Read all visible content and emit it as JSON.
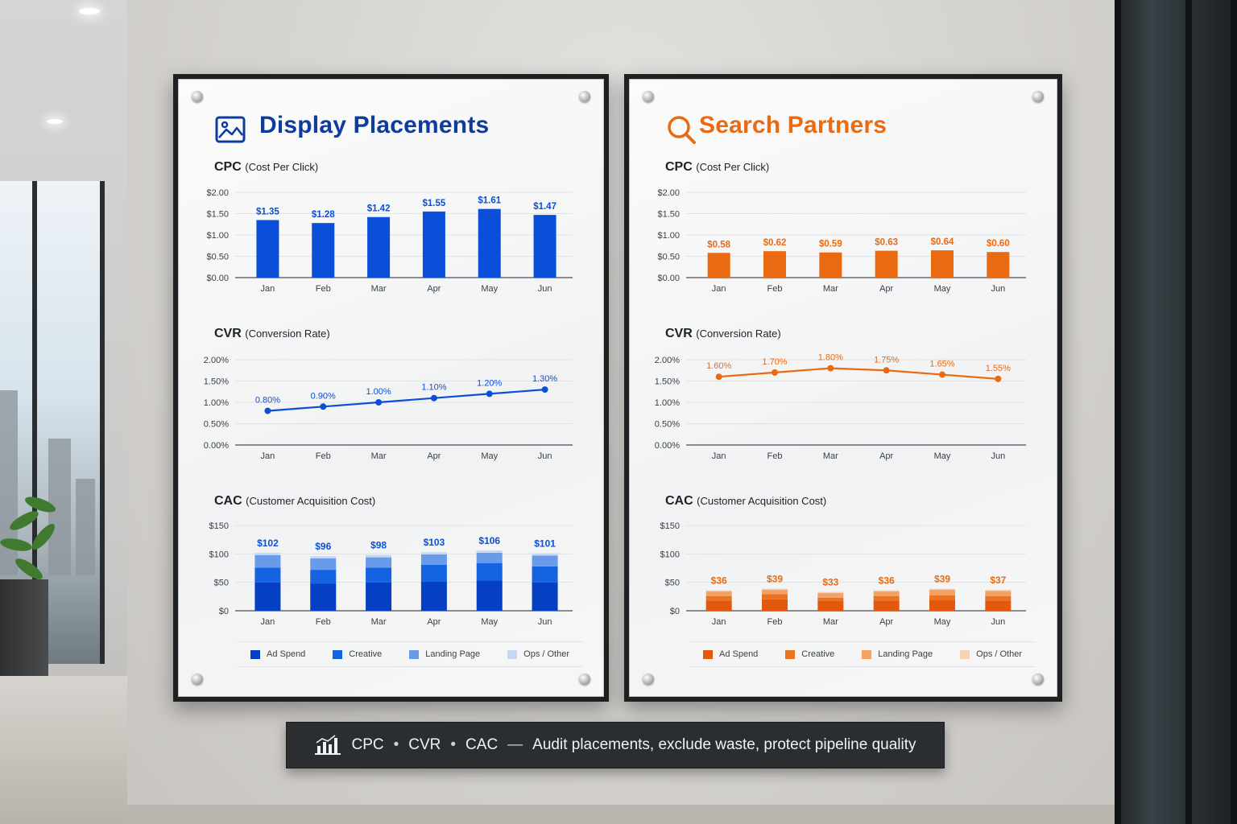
{
  "colors": {
    "display_primary": "#0b4fd8",
    "display_title": "#0f3b9c",
    "search_primary": "#ea6a12",
    "display_stack": [
      "#0640c2",
      "#1463e0",
      "#6a9bea",
      "#c6d8f6"
    ],
    "search_stack": [
      "#e2580d",
      "#ec7221",
      "#f3a263",
      "#f9d2b4"
    ]
  },
  "icons": {
    "display": "image-icon",
    "search": "search-icon",
    "plaque": "bar-chart-icon"
  },
  "plaque": {
    "metric1": "CPC",
    "metric2": "CVR",
    "metric3": "CAC",
    "separator_dot": "•",
    "separator_dash": "—",
    "message": "Audit placements, exclude waste, protect pipeline quality"
  },
  "panels": [
    {
      "title": "Display Placements",
      "legend": [
        "Ad Spend",
        "Creative",
        "Landing Page",
        "Ops / Other"
      ]
    },
    {
      "title": "Search Partners",
      "legend": [
        "Ad Spend",
        "Creative",
        "Landing Page",
        "Ops / Other"
      ]
    }
  ],
  "chart_data": [
    {
      "id": "display-cpc",
      "type": "bar",
      "title": "CPC",
      "subtitle": "(Cost Per Click)",
      "categories": [
        "Jan",
        "Feb",
        "Mar",
        "Apr",
        "May",
        "Jun"
      ],
      "values": [
        1.35,
        1.28,
        1.42,
        1.55,
        1.61,
        1.47
      ],
      "data_labels": [
        "$1.35",
        "$1.28",
        "$1.42",
        "$1.55",
        "$1.61",
        "$1.47"
      ],
      "yticks": [
        "$0.00",
        "$0.50",
        "$1.00",
        "$1.50",
        "$2.00"
      ],
      "ylim": [
        0,
        2
      ],
      "grid": true
    },
    {
      "id": "display-cvr",
      "type": "line",
      "title": "CVR",
      "subtitle": "(Conversion Rate)",
      "categories": [
        "Jan",
        "Feb",
        "Mar",
        "Apr",
        "May",
        "Jun"
      ],
      "values": [
        0.8,
        0.9,
        1.0,
        1.1,
        1.2,
        1.3
      ],
      "data_labels": [
        "0.80%",
        "0.90%",
        "1.00%",
        "1.10%",
        "1.20%",
        "1.30%"
      ],
      "yticks": [
        "0.00%",
        "0.50%",
        "1.00%",
        "1.50%",
        "2.00%"
      ],
      "ylim": [
        0,
        2
      ],
      "grid": true
    },
    {
      "id": "display-cac",
      "type": "bar",
      "stacked": true,
      "title": "CAC",
      "subtitle": "(Customer Acquisition Cost)",
      "categories": [
        "Jan",
        "Feb",
        "Mar",
        "Apr",
        "May",
        "Jun"
      ],
      "series": [
        {
          "name": "Ad Spend",
          "values": [
            50,
            48,
            50,
            51,
            53,
            50
          ]
        },
        {
          "name": "Creative",
          "values": [
            26,
            24,
            26,
            30,
            31,
            28
          ]
        },
        {
          "name": "Landing Page",
          "values": [
            22,
            20,
            18,
            18,
            18,
            19
          ]
        },
        {
          "name": "Ops / Other",
          "values": [
            4,
            4,
            4,
            4,
            4,
            4
          ]
        }
      ],
      "totals": [
        102,
        96,
        98,
        103,
        106,
        101
      ],
      "data_labels": [
        "$102",
        "$96",
        "$98",
        "$103",
        "$106",
        "$101"
      ],
      "yticks": [
        "$0",
        "$50",
        "$100",
        "$150"
      ],
      "ylim": [
        0,
        150
      ],
      "grid": true,
      "legend_position": "bottom"
    },
    {
      "id": "search-cpc",
      "type": "bar",
      "title": "CPC",
      "subtitle": "(Cost Per Click)",
      "categories": [
        "Jan",
        "Feb",
        "Mar",
        "Apr",
        "May",
        "Jun"
      ],
      "values": [
        0.58,
        0.62,
        0.59,
        0.63,
        0.64,
        0.6
      ],
      "data_labels": [
        "$0.58",
        "$0.62",
        "$0.59",
        "$0.63",
        "$0.64",
        "$0.60"
      ],
      "yticks": [
        "$0.00",
        "$0.50",
        "$1.00",
        "$1.50",
        "$2.00"
      ],
      "ylim": [
        0,
        2
      ],
      "grid": true
    },
    {
      "id": "search-cvr",
      "type": "line",
      "title": "CVR",
      "subtitle": "(Conversion Rate)",
      "categories": [
        "Jan",
        "Feb",
        "Mar",
        "Apr",
        "May",
        "Jun"
      ],
      "values": [
        1.6,
        1.7,
        1.8,
        1.75,
        1.65,
        1.55
      ],
      "data_labels": [
        "1.60%",
        "1.70%",
        "1.80%",
        "1.75%",
        "1.65%",
        "1.55%"
      ],
      "yticks": [
        "0.00%",
        "0.50%",
        "1.00%",
        "1.50%",
        "2.00%"
      ],
      "ylim": [
        0,
        2
      ],
      "grid": true
    },
    {
      "id": "search-cac",
      "type": "bar",
      "stacked": true,
      "title": "CAC",
      "subtitle": "(Customer Acquisition Cost)",
      "categories": [
        "Jan",
        "Feb",
        "Mar",
        "Apr",
        "May",
        "Jun"
      ],
      "series": [
        {
          "name": "Ad Spend",
          "values": [
            18,
            20,
            17,
            18,
            19,
            18
          ]
        },
        {
          "name": "Creative",
          "values": [
            8,
            9,
            6,
            8,
            8,
            8
          ]
        },
        {
          "name": "Landing Page",
          "values": [
            8,
            8,
            8,
            8,
            10,
            9
          ]
        },
        {
          "name": "Ops / Other",
          "values": [
            2,
            2,
            2,
            2,
            2,
            2
          ]
        }
      ],
      "totals": [
        36,
        39,
        33,
        36,
        39,
        37
      ],
      "data_labels": [
        "$36",
        "$39",
        "$33",
        "$36",
        "$39",
        "$37"
      ],
      "yticks": [
        "$0",
        "$50",
        "$100",
        "$150"
      ],
      "ylim": [
        0,
        150
      ],
      "grid": true,
      "legend_position": "bottom"
    }
  ]
}
